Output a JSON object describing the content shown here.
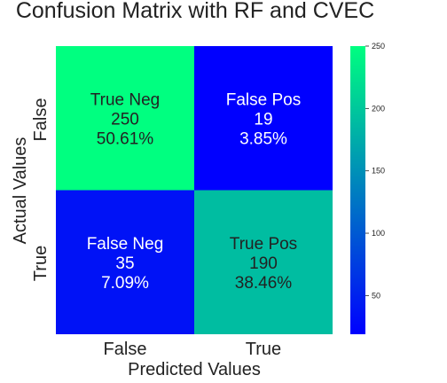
{
  "chart_data": {
    "type": "heatmap",
    "title": "Confusion Matrix with RF and CVEC",
    "xlabel": "Predicted Values",
    "ylabel": "Actual Values",
    "x_categories": [
      "False",
      "True"
    ],
    "y_categories": [
      "False",
      "True"
    ],
    "values": [
      [
        250,
        19
      ],
      [
        35,
        190
      ]
    ],
    "cell_labels": [
      [
        [
          "True Neg",
          "250",
          "50.61%"
        ],
        [
          "False Pos",
          "19",
          "3.85%"
        ]
      ],
      [
        [
          "False Neg",
          "35",
          "7.09%"
        ],
        [
          "True Pos",
          "190",
          "38.46%"
        ]
      ]
    ],
    "colormap": "winter",
    "colorbar": {
      "range": [
        19,
        250
      ],
      "ticks": [
        50,
        100,
        150,
        200,
        250
      ]
    },
    "colors": {
      "low": "#0000ff",
      "high": "#00ff80",
      "text_on_high": "#222222",
      "text_on_low": "#ffffff"
    }
  }
}
